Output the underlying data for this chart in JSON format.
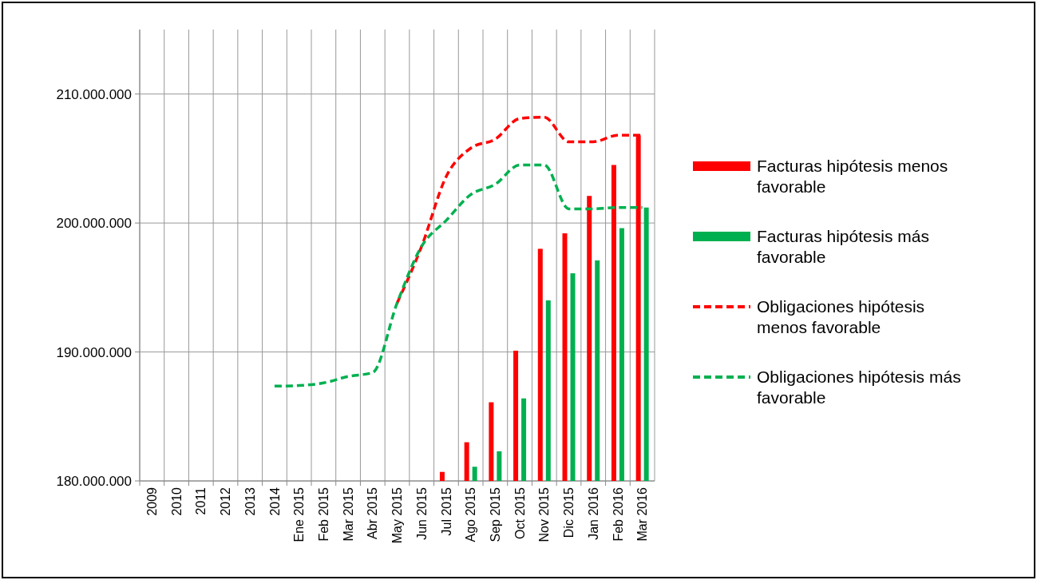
{
  "chart_data": {
    "type": "bar",
    "categories": [
      "2009",
      "2010",
      "2011",
      "2012",
      "2013",
      "2014",
      "Ene 2015",
      "Feb 2015",
      "Mar 2015",
      "Abr 2015",
      "May 2015",
      "Jun 2015",
      "Jul 2015",
      "Ago 2015",
      "Sep 2015",
      "Oct 2015",
      "Nov 2015",
      "Dic 2015",
      "Jan 2016",
      "Feb 2016",
      "Mar 2016"
    ],
    "series": [
      {
        "name": "Facturas hipótesis menos favorable",
        "color": "#ff0000",
        "values": [
          null,
          null,
          null,
          null,
          null,
          null,
          null,
          null,
          null,
          null,
          null,
          null,
          180700000,
          183000000,
          186100000,
          190100000,
          198000000,
          199200000,
          202100000,
          204500000,
          206800000
        ]
      },
      {
        "name": "Facturas hipótesis más favorable",
        "color": "#00b050",
        "values": [
          null,
          null,
          null,
          null,
          null,
          null,
          null,
          null,
          null,
          null,
          null,
          null,
          null,
          181100000,
          182300000,
          186400000,
          194000000,
          196100000,
          197100000,
          199600000,
          201200000
        ]
      },
      {
        "name": "Obligaciones hipótesis menos favorable",
        "type": "line",
        "line_style": "dashed",
        "color": "#ff0000",
        "values": [
          null,
          null,
          null,
          null,
          null,
          null,
          null,
          null,
          null,
          null,
          193800000,
          198200000,
          203600000,
          205800000,
          206500000,
          208100000,
          208200000,
          206300000,
          206300000,
          206800000,
          206800000
        ]
      },
      {
        "name": "Obligaciones hipótesis más favorable",
        "type": "line",
        "line_style": "dashed",
        "color": "#00b050",
        "values": [
          null,
          null,
          null,
          null,
          null,
          187350000,
          187400000,
          187600000,
          188100000,
          188400000,
          193800000,
          198200000,
          200200000,
          202200000,
          203000000,
          204500000,
          204500000,
          201100000,
          201100000,
          201200000,
          201200000
        ]
      }
    ],
    "ylim": [
      180000000,
      215000000
    ],
    "yticks": [
      {
        "value": 180000000,
        "label": "180.000.000"
      },
      {
        "value": 190000000,
        "label": "190.000.000"
      },
      {
        "value": 200000000,
        "label": "200.000.000"
      },
      {
        "value": 210000000,
        "label": "210.000.000"
      }
    ],
    "grid": true,
    "legend": "right",
    "marker": "none"
  }
}
